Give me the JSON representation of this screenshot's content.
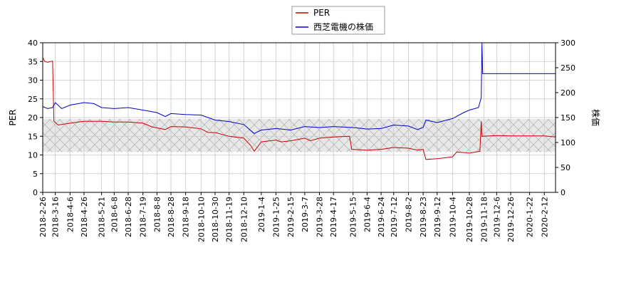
{
  "chart_data": {
    "type": "line",
    "title": "",
    "xlabel": "",
    "ylabel_left": "PER",
    "ylabel_right": "株価",
    "ylim_left": [
      0,
      40
    ],
    "ylim_right": [
      0,
      300
    ],
    "yticks_left": [
      0,
      5,
      10,
      15,
      20,
      25,
      30,
      35,
      40
    ],
    "yticks_right": [
      0,
      50,
      100,
      150,
      200,
      250,
      300
    ],
    "grid": true,
    "legend_position": "top-center",
    "shaded_band_left": [
      10.8,
      19.6
    ],
    "xlim": [
      "2018-02-26",
      "2020-02-28"
    ],
    "x_ticks": [
      "2018-2-26",
      "2018-3-16",
      "2018-4-6",
      "2018-4-26",
      "2018-5-21",
      "2018-6-8",
      "2018-6-28",
      "2018-7-19",
      "2018-8-8",
      "2018-8-28",
      "2018-9-18",
      "2018-10-10",
      "2018-10-30",
      "2018-11-19",
      "2018-12-10",
      "2019-1-4",
      "2019-1-25",
      "2019-2-15",
      "2019-3-7",
      "2019-3-28",
      "2019-4-17",
      "2019-5-15",
      "2019-6-4",
      "2019-6-24",
      "2019-7-12",
      "2019-8-2",
      "2019-8-23",
      "2019-9-12",
      "2019-10-4",
      "2019-10-28",
      "2019-11-18",
      "2019-12-6",
      "2019-12-26",
      "2020-1-22",
      "2020-2-12"
    ],
    "series": [
      {
        "name": "PER",
        "color": "#cc0000",
        "axis": "left",
        "points": [
          [
            "2018-02-26",
            36.0
          ],
          [
            "2018-03-01",
            35.0
          ],
          [
            "2018-03-05",
            34.8
          ],
          [
            "2018-03-12",
            35.1
          ],
          [
            "2018-03-14",
            19.0
          ],
          [
            "2018-03-20",
            18.0
          ],
          [
            "2018-04-06",
            18.5
          ],
          [
            "2018-04-26",
            19.0
          ],
          [
            "2018-05-21",
            19.0
          ],
          [
            "2018-06-08",
            18.8
          ],
          [
            "2018-06-28",
            18.8
          ],
          [
            "2018-07-19",
            18.5
          ],
          [
            "2018-08-01",
            17.5
          ],
          [
            "2018-08-20",
            16.8
          ],
          [
            "2018-08-28",
            17.6
          ],
          [
            "2018-09-18",
            17.5
          ],
          [
            "2018-10-10",
            17.0
          ],
          [
            "2018-10-20",
            16.0
          ],
          [
            "2018-10-30",
            16.0
          ],
          [
            "2018-11-19",
            15.0
          ],
          [
            "2018-12-10",
            14.5
          ],
          [
            "2018-12-20",
            12.5
          ],
          [
            "2018-12-25",
            11.0
          ],
          [
            "2019-01-04",
            13.5
          ],
          [
            "2019-01-25",
            14.0
          ],
          [
            "2019-02-01",
            13.5
          ],
          [
            "2019-02-15",
            13.8
          ],
          [
            "2019-03-07",
            14.5
          ],
          [
            "2019-03-15",
            13.8
          ],
          [
            "2019-03-28",
            14.5
          ],
          [
            "2019-04-17",
            14.8
          ],
          [
            "2019-05-10",
            15.0
          ],
          [
            "2019-05-13",
            11.5
          ],
          [
            "2019-06-04",
            11.3
          ],
          [
            "2019-06-24",
            11.5
          ],
          [
            "2019-07-12",
            12.0
          ],
          [
            "2019-08-02",
            11.8
          ],
          [
            "2019-08-15",
            11.3
          ],
          [
            "2019-08-23",
            11.5
          ],
          [
            "2019-08-27",
            8.8
          ],
          [
            "2019-09-12",
            9.0
          ],
          [
            "2019-10-04",
            9.5
          ],
          [
            "2019-10-10",
            10.8
          ],
          [
            "2019-10-28",
            10.5
          ],
          [
            "2019-11-12",
            11.0
          ],
          [
            "2019-11-14",
            19.0
          ],
          [
            "2019-11-15",
            15.0
          ],
          [
            "2019-12-06",
            15.2
          ],
          [
            "2019-12-26",
            15.1
          ],
          [
            "2020-01-22",
            15.1
          ],
          [
            "2020-02-12",
            15.1
          ],
          [
            "2020-02-28",
            14.8
          ]
        ]
      },
      {
        "name": "西芝電機の株価",
        "color": "#0000cc",
        "axis": "right",
        "points": [
          [
            "2018-02-26",
            172
          ],
          [
            "2018-03-05",
            168
          ],
          [
            "2018-03-12",
            170
          ],
          [
            "2018-03-16",
            180
          ],
          [
            "2018-03-25",
            168
          ],
          [
            "2018-04-06",
            175
          ],
          [
            "2018-04-26",
            180
          ],
          [
            "2018-05-10",
            178
          ],
          [
            "2018-05-21",
            170
          ],
          [
            "2018-06-08",
            168
          ],
          [
            "2018-06-28",
            170
          ],
          [
            "2018-07-19",
            165
          ],
          [
            "2018-08-08",
            160
          ],
          [
            "2018-08-20",
            152
          ],
          [
            "2018-08-28",
            158
          ],
          [
            "2018-09-18",
            156
          ],
          [
            "2018-10-10",
            155
          ],
          [
            "2018-10-30",
            145
          ],
          [
            "2018-11-19",
            142
          ],
          [
            "2018-12-10",
            136
          ],
          [
            "2018-12-25",
            118
          ],
          [
            "2019-01-04",
            125
          ],
          [
            "2019-01-25",
            128
          ],
          [
            "2019-02-15",
            125
          ],
          [
            "2019-03-07",
            132
          ],
          [
            "2019-03-28",
            130
          ],
          [
            "2019-04-17",
            132
          ],
          [
            "2019-05-15",
            130
          ],
          [
            "2019-06-04",
            127
          ],
          [
            "2019-06-24",
            128
          ],
          [
            "2019-07-12",
            135
          ],
          [
            "2019-08-02",
            133
          ],
          [
            "2019-08-15",
            126
          ],
          [
            "2019-08-23",
            130
          ],
          [
            "2019-08-27",
            145
          ],
          [
            "2019-09-12",
            140
          ],
          [
            "2019-10-04",
            148
          ],
          [
            "2019-10-20",
            160
          ],
          [
            "2019-10-28",
            165
          ],
          [
            "2019-11-10",
            170
          ],
          [
            "2019-11-14",
            190
          ],
          [
            "2019-11-15",
            302
          ],
          [
            "2019-11-16",
            238
          ],
          [
            "2019-12-06",
            238
          ],
          [
            "2019-12-26",
            238
          ],
          [
            "2020-01-22",
            238
          ],
          [
            "2020-02-12",
            238
          ],
          [
            "2020-02-28",
            238
          ]
        ]
      }
    ]
  }
}
